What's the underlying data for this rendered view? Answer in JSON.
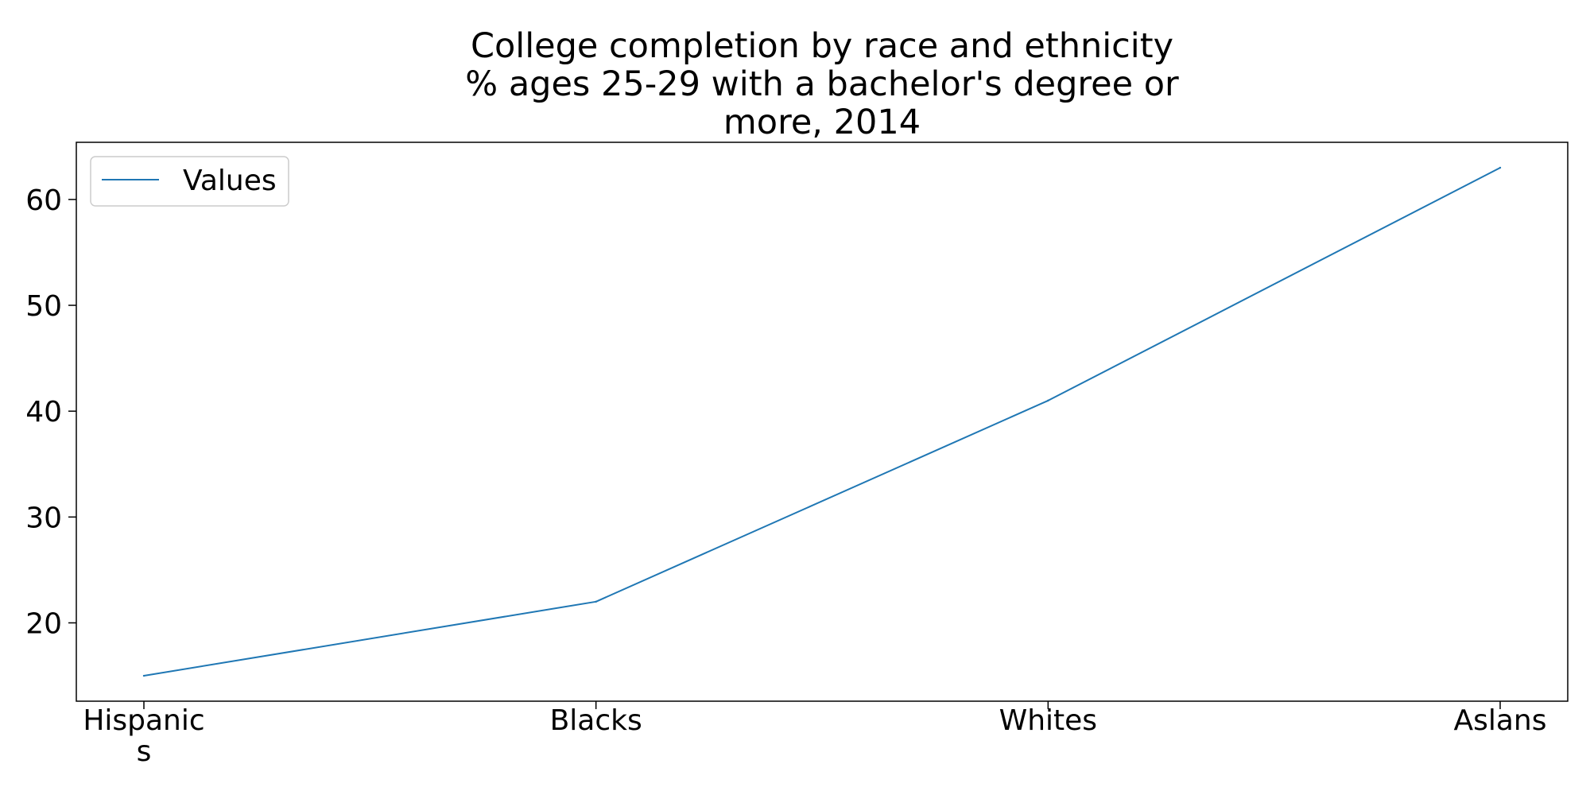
{
  "chart_data": {
    "type": "line",
    "title_lines": [
      "College completion by race and ethnicity",
      "% ages 25-29 with a bachelor's degree or",
      "more, 2014"
    ],
    "categories": [
      {
        "label_lines": [
          "Hispanic",
          "s"
        ]
      },
      {
        "label_lines": [
          "Blacks"
        ]
      },
      {
        "label_lines": [
          "Whites"
        ]
      },
      {
        "label_lines": [
          "Aslans"
        ]
      }
    ],
    "series": [
      {
        "name": "Values",
        "values": [
          15,
          22,
          41,
          63
        ],
        "color": "#1f77b4"
      }
    ],
    "ylim": [
      12.6,
      65.4
    ],
    "yticks": [
      20,
      30,
      40,
      50,
      60
    ],
    "grid": false,
    "legend": "top-left"
  }
}
